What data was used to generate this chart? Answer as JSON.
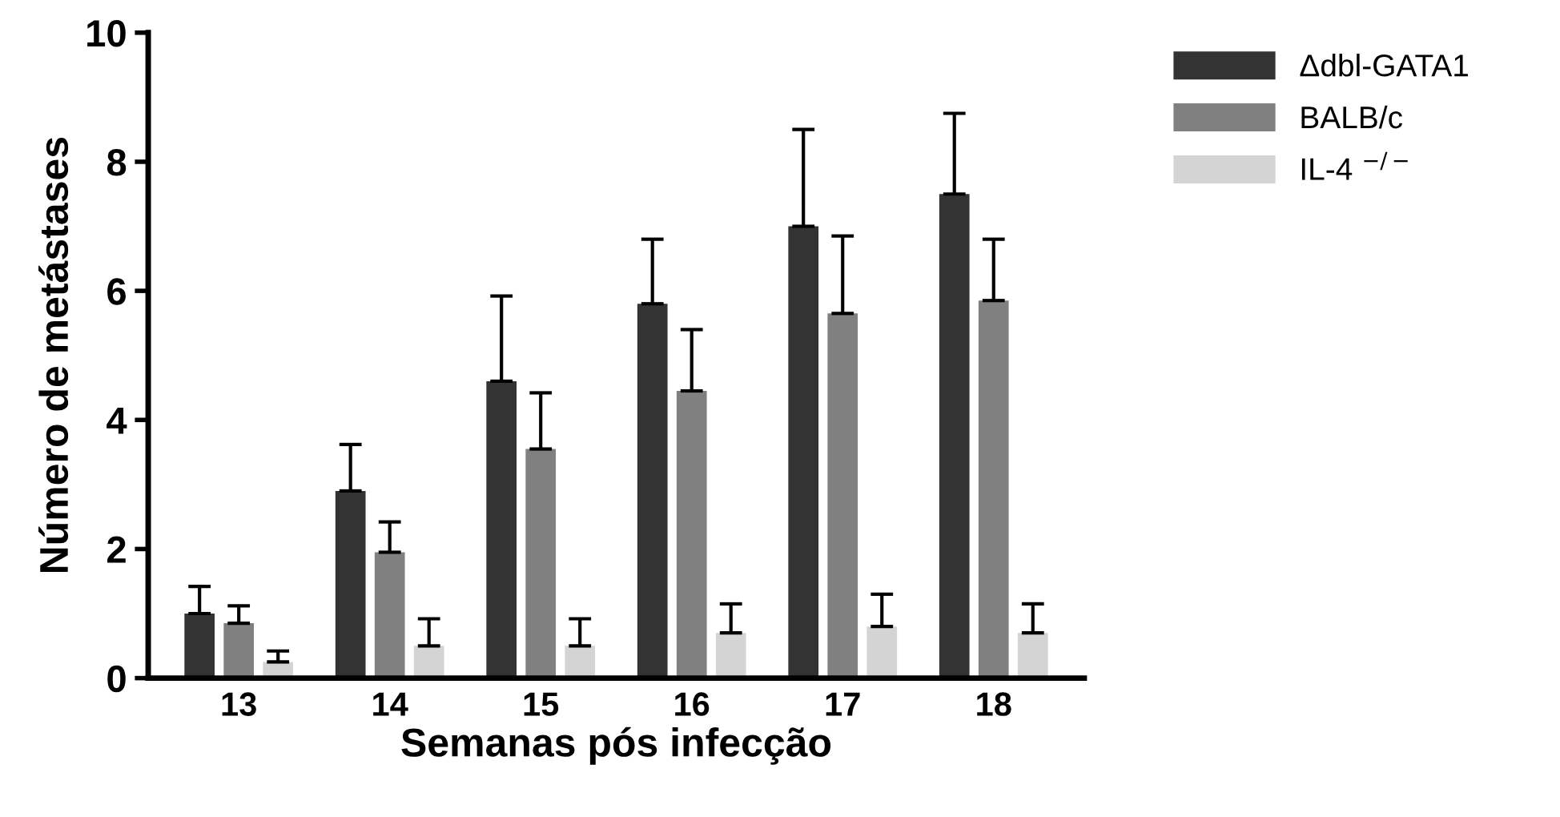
{
  "chart_data": {
    "type": "bar",
    "xlabel": "Semanas pós infecção",
    "ylabel": "Número de metástases",
    "categories": [
      "13",
      "14",
      "15",
      "16",
      "17",
      "18"
    ],
    "series": [
      {
        "name": "Δdbl-GATA1",
        "color": "#333333",
        "values": [
          1.0,
          2.9,
          4.6,
          5.8,
          7.0,
          7.5
        ],
        "errors": [
          [
            1.0,
            1.42
          ],
          [
            2.9,
            3.62
          ],
          [
            4.6,
            5.92
          ],
          [
            5.8,
            6.8
          ],
          [
            7.0,
            8.5
          ],
          [
            7.5,
            8.75
          ]
        ]
      },
      {
        "name": "BALB/c",
        "color": "#808080",
        "values": [
          0.85,
          1.95,
          3.55,
          4.45,
          5.65,
          5.85
        ],
        "errors": [
          [
            0.85,
            1.12
          ],
          [
            1.95,
            2.42
          ],
          [
            3.55,
            4.42
          ],
          [
            4.45,
            5.4
          ],
          [
            5.65,
            6.85
          ],
          [
            5.85,
            6.8
          ]
        ]
      },
      {
        "name": "IL-4 $^{−/−}$",
        "color": "#d4d4d4",
        "values": [
          0.25,
          0.5,
          0.5,
          0.7,
          0.8,
          0.7
        ],
        "errors": [
          [
            0.25,
            0.42
          ],
          [
            0.5,
            0.92
          ],
          [
            0.5,
            0.92
          ],
          [
            0.7,
            1.15
          ],
          [
            0.8,
            1.3
          ],
          [
            0.7,
            1.15
          ]
        ]
      }
    ],
    "ylim": [
      0,
      10
    ],
    "yticks": [
      0,
      2,
      4,
      6,
      8,
      10
    ],
    "grid": false,
    "legend": "top right"
  }
}
